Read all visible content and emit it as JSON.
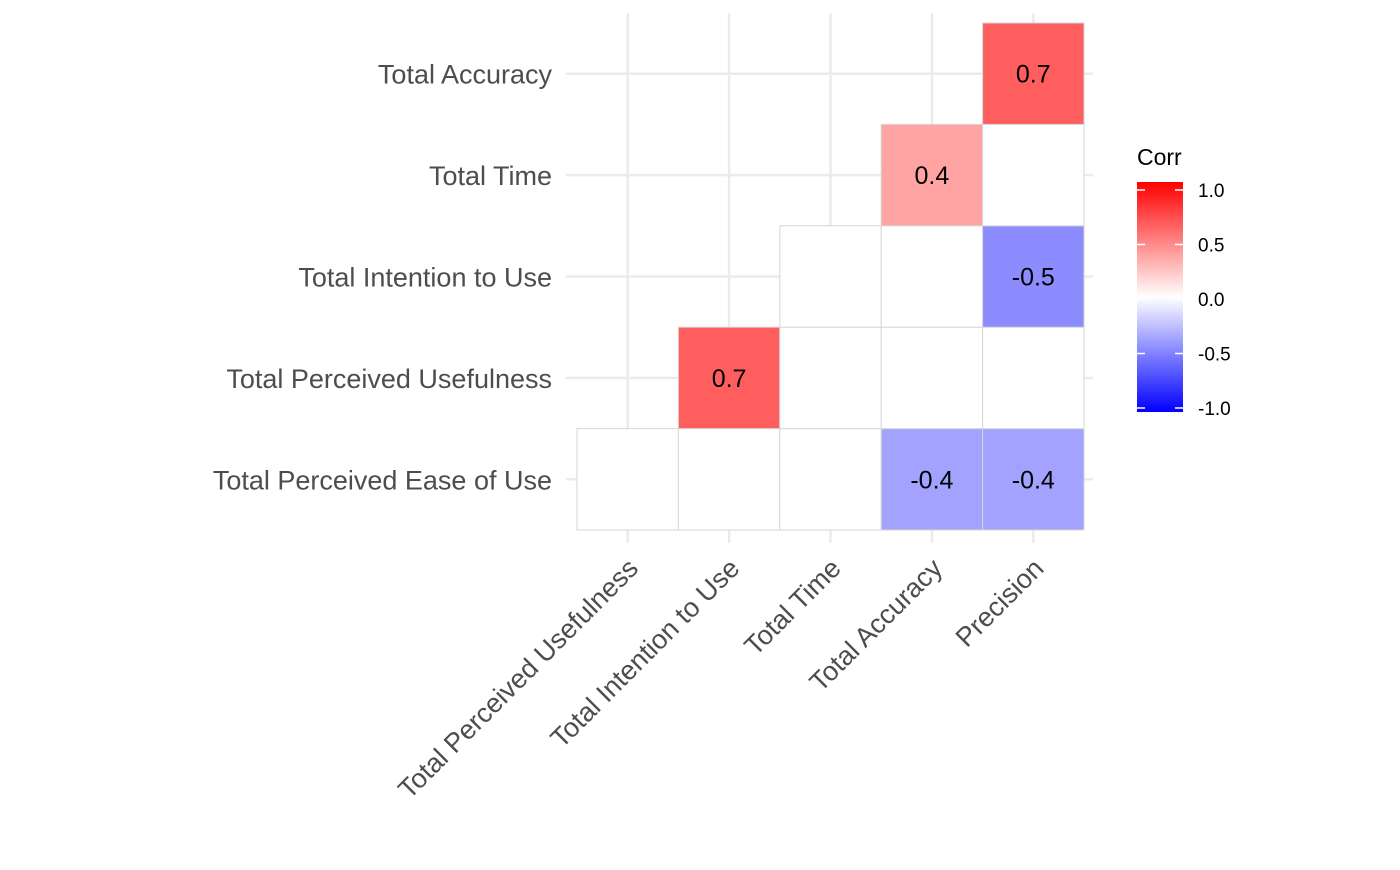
{
  "chart_data": {
    "type": "heatmap",
    "x_categories": [
      "Total Perceived Usefulness",
      "Total Intention to Use",
      "Total Time",
      "Total Accuracy",
      "Precision"
    ],
    "y_categories": [
      "Total Perceived Ease of Use",
      "Total Perceived Usefulness",
      "Total Intention to Use",
      "Total Time",
      "Total Accuracy"
    ],
    "cells": [
      {
        "x": "Total Perceived Usefulness",
        "y": "Total Perceived Ease of Use",
        "value": 0.0,
        "label": ""
      },
      {
        "x": "Total Intention to Use",
        "y": "Total Perceived Ease of Use",
        "value": 0.0,
        "label": ""
      },
      {
        "x": "Total Time",
        "y": "Total Perceived Ease of Use",
        "value": 0.0,
        "label": ""
      },
      {
        "x": "Total Accuracy",
        "y": "Total Perceived Ease of Use",
        "value": -0.4,
        "label": "-0.4"
      },
      {
        "x": "Precision",
        "y": "Total Perceived Ease of Use",
        "value": -0.4,
        "label": "-0.4"
      },
      {
        "x": "Total Intention to Use",
        "y": "Total Perceived Usefulness",
        "value": 0.7,
        "label": "0.7"
      },
      {
        "x": "Total Time",
        "y": "Total Perceived Usefulness",
        "value": 0.0,
        "label": ""
      },
      {
        "x": "Total Accuracy",
        "y": "Total Perceived Usefulness",
        "value": 0.0,
        "label": ""
      },
      {
        "x": "Precision",
        "y": "Total Perceived Usefulness",
        "value": 0.0,
        "label": ""
      },
      {
        "x": "Total Time",
        "y": "Total Intention to Use",
        "value": 0.0,
        "label": ""
      },
      {
        "x": "Total Accuracy",
        "y": "Total Intention to Use",
        "value": 0.0,
        "label": ""
      },
      {
        "x": "Precision",
        "y": "Total Intention to Use",
        "value": -0.5,
        "label": "-0.5"
      },
      {
        "x": "Total Accuracy",
        "y": "Total Time",
        "value": 0.4,
        "label": "0.4"
      },
      {
        "x": "Precision",
        "y": "Total Time",
        "value": 0.0,
        "label": ""
      },
      {
        "x": "Precision",
        "y": "Total Accuracy",
        "value": 0.7,
        "label": "0.7"
      }
    ],
    "legend": {
      "title": "Corr",
      "ticks": [
        "1.0",
        "0.5",
        "0.0",
        "-0.5",
        "-1.0"
      ],
      "tick_values": [
        1.0,
        0.5,
        0.0,
        -0.5,
        -1.0
      ],
      "range": [
        -1,
        1
      ],
      "low_color": "#0000FF",
      "mid_color": "#FFFFFF",
      "high_color": "#FF0000",
      "placement": "right"
    },
    "grid": true,
    "title": "",
    "xlabel": "",
    "ylabel": ""
  }
}
